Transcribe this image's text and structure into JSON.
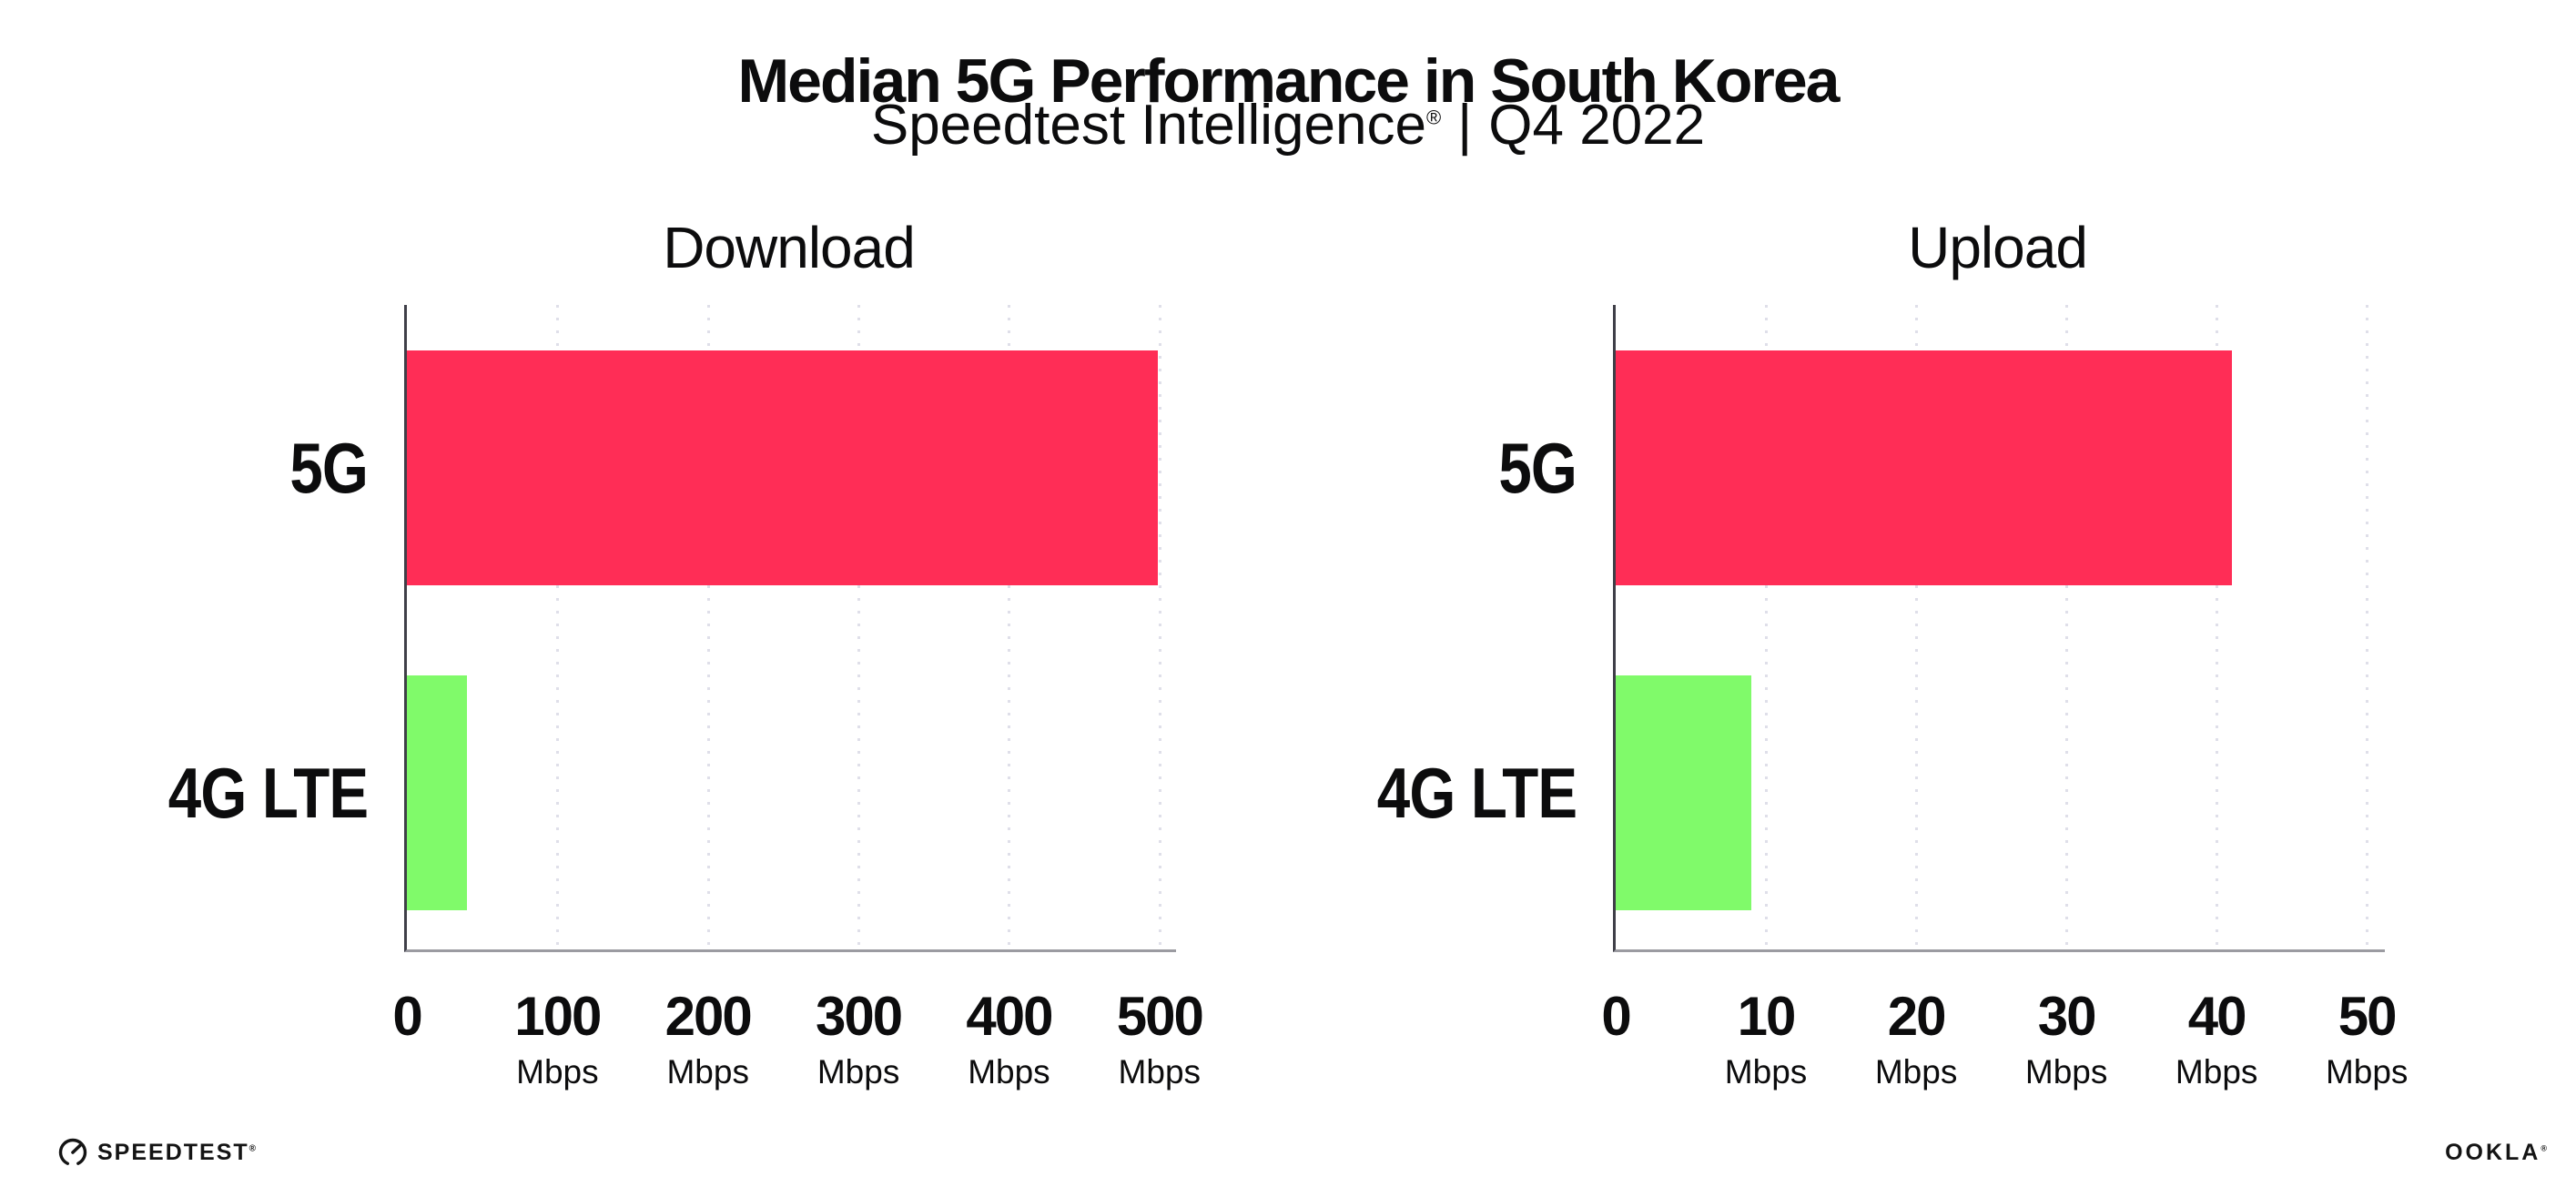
{
  "header": {
    "title": "Median 5G Performance in South Korea",
    "subtitle_brand": "Speedtest Intelligence",
    "subtitle_reg_mark": "®",
    "subtitle_separator": "|",
    "subtitle_period": "Q4 2022"
  },
  "chart_data": [
    {
      "type": "bar",
      "orientation": "horizontal",
      "title": "Download",
      "categories": [
        "5G",
        "4G LTE"
      ],
      "values": [
        499,
        40
      ],
      "unit": "Mbps",
      "axis": {
        "min": 0,
        "max": 511,
        "ticks": [
          0,
          100,
          200,
          300,
          400,
          500
        ],
        "tick_unit": "Mbps",
        "grid": "dotted-vertical"
      },
      "bar_colors": [
        "#ff2d56",
        "#80fa6a"
      ],
      "legend": "none"
    },
    {
      "type": "bar",
      "orientation": "horizontal",
      "title": "Upload",
      "categories": [
        "5G",
        "4G LTE"
      ],
      "values": [
        41,
        9
      ],
      "unit": "Mbps",
      "axis": {
        "min": 0,
        "max": 51.2,
        "ticks": [
          0,
          10,
          20,
          30,
          40,
          50
        ],
        "tick_unit": "Mbps",
        "grid": "dotted-vertical"
      },
      "bar_colors": [
        "#ff2d56",
        "#80fa6a"
      ],
      "legend": "none"
    }
  ],
  "footer": {
    "speedtest_wordmark": "SPEEDTEST",
    "speedtest_mark": "®",
    "ookla_wordmark": "OOKLA",
    "ookla_mark": "®"
  },
  "colors": {
    "bar_5g": "#ff2d56",
    "bar_4g_lte": "#80fa6a",
    "axis_y_line": "#3f3f48",
    "axis_x_line": "#9b9ba1",
    "gridline_dots": "#dfdfe9",
    "text": "#0c0c0d",
    "background": "#ffffff"
  }
}
